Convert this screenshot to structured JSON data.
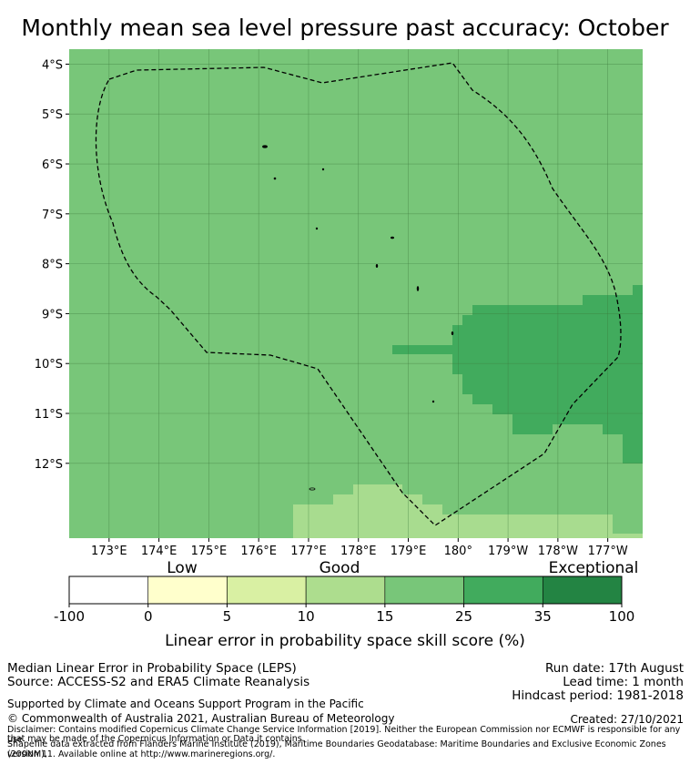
{
  "title": "Monthly mean sea level pressure past accuracy: October",
  "map": {
    "lat_labels": [
      "4°S",
      "5°S",
      "6°S",
      "7°S",
      "8°S",
      "9°S",
      "10°S",
      "11°S",
      "12°S"
    ],
    "lon_labels": [
      "173°E",
      "174°E",
      "175°E",
      "176°E",
      "177°E",
      "178°E",
      "179°E",
      "180°",
      "179°W",
      "178°W",
      "177°W"
    ],
    "lat_range": [
      -13.5,
      -3.7
    ],
    "lon_range": [
      172.2,
      183.7
    ],
    "eez_boundary_style": "dashed black",
    "region_colors": {
      "moderate": "#a8dc8f",
      "good": "#78c679",
      "very_good": "#41ab5d"
    }
  },
  "colorbar": {
    "category_labels": [
      "Low",
      "Good",
      "Exceptional"
    ],
    "tick_labels": [
      "-100",
      "0",
      "5",
      "10",
      "15",
      "25",
      "35",
      "100"
    ],
    "colors": [
      "#ffffff",
      "#ffffcc",
      "#d9f0a3",
      "#addd8e",
      "#78c679",
      "#41ab5d",
      "#238443"
    ],
    "label": "Linear error in probability space skill score (%)"
  },
  "info": {
    "line1": "Median Linear Error in Probability Space (LEPS)",
    "line2": "Source: ACCESS-S2 and ERA5 Climate Reanalysis",
    "supported": "Supported by Climate and Oceans Support Program in the Pacific",
    "copyright": "© Commonwealth of Australia 2021, Australian Bureau of Meteorology",
    "run_date": "Run date: 17th August",
    "lead_time": "Lead time: 1 month",
    "hindcast": "Hindcast period: 1981-2018",
    "created": "Created: 27/10/2021",
    "disclaimer1": "Disclaimer: Contains modified Copernicus Climate Change Service Information [2019]. Neither the European Commission nor ECMWF is responsible for any use",
    "disclaimer2": "that may be made of the Copernicus Information or Data it contains.",
    "shapefile1": "Shapefile data extracted from Flanders Marine Institute (2019), Maritime Boundaries Geodatabase: Maritime Boundaries and Exclusive Economic Zones (200NM),",
    "shapefile2": "version 11. Available online at http://www.marineregions.org/."
  }
}
